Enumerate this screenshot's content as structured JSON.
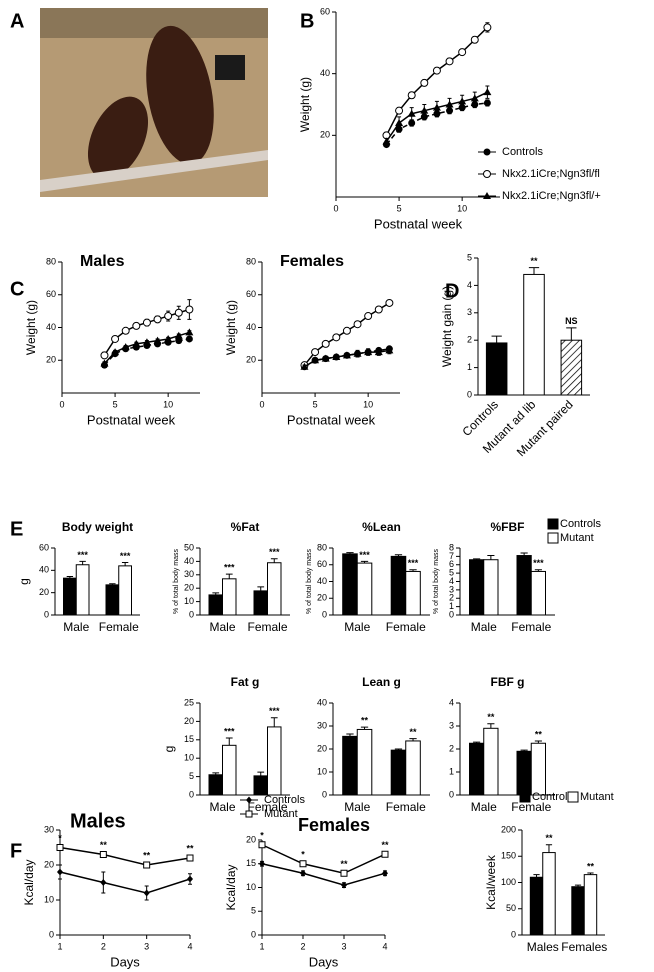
{
  "panel_labels": [
    "A",
    "B",
    "C",
    "D",
    "E",
    "F"
  ],
  "chart_data": [
    {
      "type": "line",
      "xlabel": "Postnatal week",
      "ylabel": "Weight (g)",
      "x": [
        4,
        5,
        6,
        7,
        8,
        9,
        10,
        11,
        12
      ],
      "xlim": [
        0,
        13
      ],
      "ylim": [
        0,
        60
      ],
      "xticks": [
        0,
        5,
        10
      ],
      "yticks": [
        20,
        40,
        60
      ],
      "legend": true,
      "series": [
        {
          "name": "Controls",
          "color": "#000000",
          "marker": "filled-circle",
          "dashed": true,
          "values": [
            17,
            22,
            24,
            26,
            27,
            28,
            29,
            30,
            30.5
          ],
          "errors": [
            0.5,
            1,
            1,
            1,
            1,
            1,
            1,
            1,
            1
          ]
        },
        {
          "name": "Nkx2.1iCre;Ngn3fl/fl",
          "color": "#000000",
          "marker": "open-circle",
          "dashed": false,
          "values": [
            20,
            28,
            33,
            37,
            41,
            44,
            47,
            51,
            55
          ],
          "errors": [
            1,
            1,
            1,
            1,
            1,
            1,
            1,
            1,
            1.5
          ]
        },
        {
          "name": "Nkx2.1iCre;Ngn3fl/+",
          "color": "#000000",
          "marker": "triangle",
          "dashed": false,
          "values": [
            18,
            24,
            27,
            28,
            29,
            30,
            31,
            32,
            34
          ],
          "errors": [
            1,
            2,
            2,
            2,
            2,
            2,
            2,
            2,
            2
          ]
        }
      ]
    },
    {
      "type": "line",
      "title": "Males",
      "xlabel": "Postnatal week",
      "ylabel": "Weight (g)",
      "x": [
        4,
        5,
        6,
        7,
        8,
        9,
        10,
        11,
        12
      ],
      "xlim": [
        0,
        13
      ],
      "ylim": [
        0,
        80
      ],
      "xticks": [
        0,
        5,
        10
      ],
      "yticks": [
        20,
        40,
        60,
        80
      ],
      "legend": false,
      "series": [
        {
          "color": "#000000",
          "marker": "filled-circle",
          "dashed": true,
          "values": [
            17,
            24,
            27,
            28,
            29,
            30,
            31,
            32,
            33
          ],
          "errors": [
            0.5,
            1,
            1,
            1,
            1,
            1,
            1,
            1,
            1
          ]
        },
        {
          "color": "#000000",
          "marker": "open-circle",
          "dashed": false,
          "values": [
            23,
            33,
            38,
            41,
            43,
            45,
            47,
            49,
            51
          ],
          "errors": [
            2,
            1,
            1,
            1,
            2,
            2,
            3,
            4,
            6
          ]
        },
        {
          "color": "#000000",
          "marker": "triangle",
          "dashed": false,
          "values": [
            18,
            25,
            28,
            30,
            31,
            32,
            33,
            35,
            37
          ],
          "errors": [
            1,
            1,
            1,
            1,
            1,
            1,
            1,
            1,
            1
          ]
        }
      ]
    },
    {
      "type": "line",
      "title": "Females",
      "xlabel": "Postnatal week",
      "ylabel": "Weight (g)",
      "x": [
        4,
        5,
        6,
        7,
        8,
        9,
        10,
        11,
        12
      ],
      "xlim": [
        0,
        13
      ],
      "ylim": [
        0,
        80
      ],
      "xticks": [
        0,
        5,
        10
      ],
      "yticks": [
        20,
        40,
        60,
        80
      ],
      "legend": false,
      "series": [
        {
          "color": "#000000",
          "marker": "filled-circle",
          "dashed": true,
          "values": [
            16,
            20,
            21,
            22,
            23,
            24,
            25,
            26,
            27
          ],
          "errors": [
            0.5,
            1,
            1,
            1,
            1,
            1,
            1,
            1,
            1
          ]
        },
        {
          "color": "#000000",
          "marker": "open-circle",
          "dashed": false,
          "values": [
            17,
            25,
            30,
            34,
            38,
            42,
            47,
            51,
            55
          ],
          "errors": [
            1,
            1,
            1,
            1,
            1,
            1,
            1,
            1,
            1.5
          ]
        },
        {
          "color": "#000000",
          "marker": "triangle",
          "dashed": false,
          "values": [
            16,
            20,
            21,
            22,
            23,
            24,
            25,
            25,
            26
          ],
          "errors": [
            1,
            1,
            1,
            1,
            1,
            2,
            2,
            2,
            2
          ]
        }
      ]
    },
    {
      "type": "bar",
      "ylabel": "Weight gain (g)",
      "categories": [
        "Controls",
        "Mutant ad lib",
        "Mutant paired"
      ],
      "values": [
        1.9,
        4.4,
        2.0
      ],
      "errors": [
        0.25,
        0.25,
        0.45
      ],
      "colors": [
        "#000000",
        "#ffffff",
        "#ffffff"
      ],
      "hatched": [
        false,
        false,
        true
      ],
      "significance": [
        null,
        "**",
        "NS"
      ],
      "xtick_rotation": 45,
      "ylim": [
        0,
        5
      ],
      "yticks": [
        0,
        1,
        2,
        3,
        4,
        5
      ],
      "legend": false
    },
    {
      "type": "bar",
      "title": "Body weight",
      "ylabel": "g",
      "categories": [
        "Male",
        "Female"
      ],
      "ylim": [
        0,
        60
      ],
      "yticks": [
        0,
        20,
        40,
        60
      ],
      "legend": false,
      "series": [
        {
          "color": "#000000",
          "values": [
            33,
            27
          ],
          "errors": [
            1.5,
            1
          ]
        },
        {
          "color": "#ffffff",
          "values": [
            45,
            44
          ],
          "errors": [
            3,
            3
          ],
          "significance": [
            "***",
            "***"
          ]
        }
      ]
    },
    {
      "type": "bar",
      "title": "%Fat",
      "ylabel": "% of total body mass",
      "categories": [
        "Male",
        "Female"
      ],
      "ylim": [
        0,
        50
      ],
      "yticks": [
        0,
        10,
        20,
        30,
        40,
        50
      ],
      "legend": false,
      "series": [
        {
          "color": "#000000",
          "values": [
            15,
            18
          ],
          "errors": [
            1.5,
            3
          ]
        },
        {
          "color": "#ffffff",
          "values": [
            27,
            39
          ],
          "errors": [
            3.5,
            3
          ],
          "significance": [
            "***",
            "***"
          ]
        }
      ]
    },
    {
      "type": "bar",
      "title": "%Lean",
      "ylabel": "% of total body mass",
      "categories": [
        "Male",
        "Female"
      ],
      "ylim": [
        0,
        80
      ],
      "yticks": [
        0,
        20,
        40,
        60,
        80
      ],
      "legend": false,
      "series": [
        {
          "color": "#000000",
          "values": [
            73,
            70
          ],
          "errors": [
            1.5,
            2
          ]
        },
        {
          "color": "#ffffff",
          "values": [
            62,
            52
          ],
          "errors": [
            2,
            2
          ],
          "significance": [
            "***",
            "***"
          ]
        }
      ]
    },
    {
      "type": "bar",
      "title": "%FBF",
      "ylabel": "% of total body mass",
      "categories": [
        "Male",
        "Female"
      ],
      "ylim": [
        0,
        8
      ],
      "yticks": [
        0,
        1,
        2,
        3,
        4,
        5,
        6,
        7,
        8
      ],
      "legend": true,
      "series": [
        {
          "name": "Controls",
          "color": "#000000",
          "values": [
            6.6,
            7.1
          ],
          "errors": [
            0.1,
            0.3
          ]
        },
        {
          "name": "Mutant",
          "color": "#ffffff",
          "values": [
            6.6,
            5.2
          ],
          "errors": [
            0.5,
            0.2
          ],
          "significance": [
            null,
            "***"
          ]
        }
      ]
    },
    {
      "type": "bar",
      "title": "Fat g",
      "ylabel": "g",
      "categories": [
        "Male",
        "Female"
      ],
      "ylim": [
        0,
        25
      ],
      "yticks": [
        0,
        5,
        10,
        15,
        20,
        25
      ],
      "legend": false,
      "series": [
        {
          "color": "#000000",
          "values": [
            5.5,
            5.2
          ],
          "errors": [
            0.5,
            1
          ]
        },
        {
          "color": "#ffffff",
          "values": [
            13.5,
            18.5
          ],
          "errors": [
            2,
            2.5
          ],
          "significance": [
            "***",
            "***"
          ]
        }
      ]
    },
    {
      "type": "bar",
      "title": "Lean g",
      "categories": [
        "Male",
        "Female"
      ],
      "ylim": [
        0,
        40
      ],
      "yticks": [
        0,
        10,
        20,
        30,
        40
      ],
      "legend": false,
      "series": [
        {
          "color": "#000000",
          "values": [
            25.5,
            19.5
          ],
          "errors": [
            1,
            0.5
          ]
        },
        {
          "color": "#ffffff",
          "values": [
            28.5,
            23.5
          ],
          "errors": [
            1,
            1
          ],
          "significance": [
            "**",
            "**"
          ]
        }
      ]
    },
    {
      "type": "bar",
      "title": "FBF g",
      "categories": [
        "Male",
        "Female"
      ],
      "ylim": [
        0,
        4
      ],
      "yticks": [
        0,
        1,
        2,
        3,
        4
      ],
      "legend": false,
      "series": [
        {
          "color": "#000000",
          "values": [
            2.25,
            1.9
          ],
          "errors": [
            0.05,
            0.05
          ]
        },
        {
          "color": "#ffffff",
          "values": [
            2.9,
            2.25
          ],
          "errors": [
            0.2,
            0.1
          ],
          "significance": [
            "**",
            "**"
          ]
        }
      ]
    },
    {
      "type": "line",
      "title": "Males",
      "xlabel": "Days",
      "ylabel": "Kcal/day",
      "x": [
        1,
        2,
        3,
        4
      ],
      "xlim": [
        1,
        4
      ],
      "ylim": [
        0,
        30
      ],
      "xticks": [
        1,
        2,
        3,
        4
      ],
      "yticks": [
        0,
        10,
        20,
        30
      ],
      "legend": true,
      "series": [
        {
          "name": "Controls",
          "color": "#000000",
          "marker": "filled-diamond",
          "dashed": false,
          "values": [
            18,
            15,
            12,
            16
          ],
          "errors": [
            2,
            3,
            2,
            1.5
          ]
        },
        {
          "name": "Mutant",
          "color": "#000000",
          "marker": "open-square",
          "dashed": false,
          "values": [
            25,
            23,
            20,
            22
          ],
          "errors": [
            0.5,
            0.5,
            0.5,
            0.5
          ],
          "significance": [
            "*",
            "**",
            "**",
            "**"
          ]
        }
      ]
    },
    {
      "type": "line",
      "title": "Females",
      "xlabel": "Days",
      "ylabel": "Kcal/day",
      "x": [
        1,
        2,
        3,
        4
      ],
      "xlim": [
        1,
        4
      ],
      "ylim": [
        0,
        20
      ],
      "xticks": [
        1,
        2,
        3,
        4
      ],
      "yticks": [
        0,
        5,
        10,
        15,
        20
      ],
      "legend": false,
      "series": [
        {
          "color": "#000000",
          "marker": "filled-diamond",
          "dashed": false,
          "values": [
            15,
            13,
            10.5,
            13
          ],
          "errors": [
            0.5,
            0.5,
            0.5,
            0.5
          ]
        },
        {
          "color": "#000000",
          "marker": "open-square",
          "dashed": false,
          "values": [
            19,
            15,
            13,
            17
          ],
          "errors": [
            0.3,
            0.3,
            0.3,
            0.3
          ],
          "significance": [
            "*",
            "*",
            "**",
            "**"
          ]
        }
      ]
    },
    {
      "type": "bar",
      "ylabel": "Kcal/week",
      "categories": [
        "Males",
        "Females"
      ],
      "ylim": [
        0,
        200
      ],
      "yticks": [
        0,
        50,
        100,
        150,
        200
      ],
      "legend": true,
      "series": [
        {
          "name": "Controls",
          "color": "#000000",
          "values": [
            110,
            92
          ],
          "errors": [
            5,
            3
          ]
        },
        {
          "name": "Mutant",
          "color": "#ffffff",
          "values": [
            157,
            115
          ],
          "errors": [
            15,
            3
          ],
          "significance": [
            "**",
            "**"
          ]
        }
      ]
    }
  ]
}
